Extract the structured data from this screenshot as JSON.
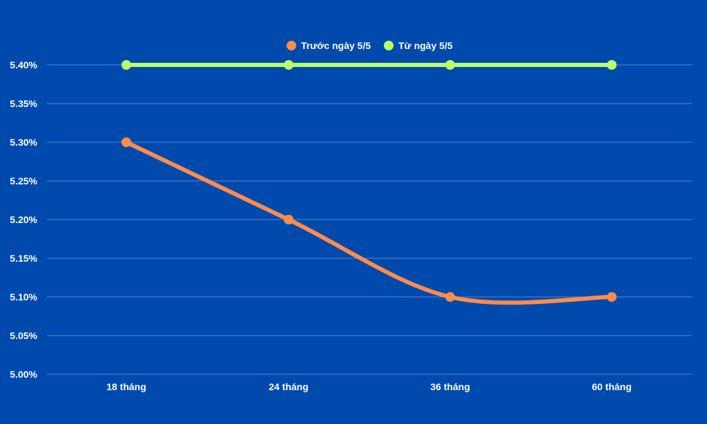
{
  "chart_data": {
    "type": "line",
    "categories": [
      "18 tháng",
      "24 tháng",
      "36 tháng",
      "60 tháng"
    ],
    "series": [
      {
        "name": "Trước ngày 5/5",
        "values": [
          5.3,
          5.2,
          5.1,
          5.1
        ],
        "color": "#ff8c4b",
        "smooth": true
      },
      {
        "name": "Từ ngày 5/5",
        "values": [
          5.4,
          5.4,
          5.4,
          5.4
        ],
        "color": "#b9ff66",
        "smooth": false
      }
    ],
    "y_ticks": [
      "5.00%",
      "5.05%",
      "5.10%",
      "5.15%",
      "5.20%",
      "5.25%",
      "5.30%",
      "5.35%",
      "5.40%"
    ],
    "ylim": [
      5.0,
      5.4
    ],
    "grid": true,
    "legend_position": "top-center",
    "background_color": "#004aad",
    "grid_color": "#5b86cf"
  }
}
